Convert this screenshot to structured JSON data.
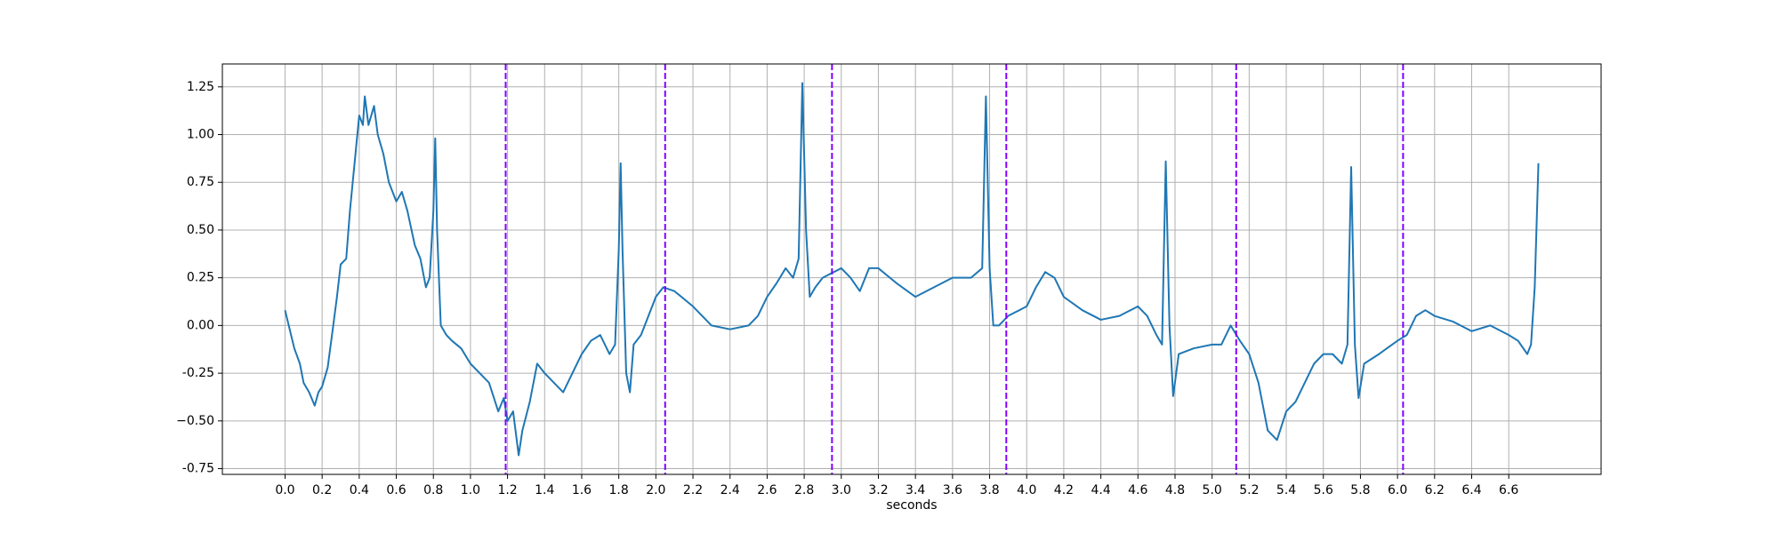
{
  "chart_data": {
    "type": "line",
    "xlabel": "seconds",
    "color": "#1f77b4",
    "grid": true,
    "vline_color": "#8000ff",
    "vlines": [
      1.19,
      2.05,
      2.95,
      3.89,
      5.13,
      6.03
    ],
    "xlim": [
      -0.338,
      7.098
    ],
    "ylim": [
      -0.78,
      1.37
    ],
    "xticks": [
      {
        "value": 0,
        "label": "0.0"
      },
      0.2,
      0.4,
      0.6,
      0.8,
      {
        "value": 1,
        "label": "1.0"
      },
      1.2,
      1.4,
      1.6,
      1.8,
      {
        "value": 2,
        "label": "2.0"
      },
      2.2,
      2.4,
      2.6,
      2.8,
      {
        "value": 3,
        "label": "3.0"
      },
      3.2,
      3.4,
      3.6,
      3.8,
      {
        "value": 4,
        "label": "4.0"
      },
      4.2,
      4.4,
      4.6,
      4.8,
      {
        "value": 5,
        "label": "5.0"
      },
      5.2,
      5.4,
      5.6,
      5.8,
      {
        "value": 6,
        "label": "6.0"
      },
      6.2,
      6.4,
      6.6
    ],
    "yticks": [
      -0.75,
      {
        "value": -0.5,
        "label": "−0.50"
      },
      -0.25,
      {
        "value": 0,
        "label": "0.00"
      },
      0.25,
      {
        "value": 0.5,
        "label": "0.50"
      },
      0.75,
      {
        "value": 1,
        "label": "1.00"
      },
      1.25
    ],
    "x": [
      0.0,
      0.02,
      0.05,
      0.08,
      0.1,
      0.13,
      0.16,
      0.18,
      0.2,
      0.23,
      0.26,
      0.28,
      0.3,
      0.33,
      0.35,
      0.38,
      0.4,
      0.42,
      0.43,
      0.45,
      0.48,
      0.5,
      0.53,
      0.56,
      0.6,
      0.63,
      0.66,
      0.7,
      0.73,
      0.76,
      0.78,
      0.8,
      0.81,
      0.82,
      0.84,
      0.87,
      0.9,
      0.95,
      1.0,
      1.05,
      1.1,
      1.15,
      1.18,
      1.2,
      1.23,
      1.26,
      1.28,
      1.32,
      1.36,
      1.4,
      1.45,
      1.5,
      1.55,
      1.6,
      1.65,
      1.7,
      1.75,
      1.78,
      1.8,
      1.81,
      1.82,
      1.84,
      1.86,
      1.88,
      1.92,
      1.96,
      2.0,
      2.04,
      2.1,
      2.2,
      2.3,
      2.4,
      2.5,
      2.55,
      2.6,
      2.65,
      2.7,
      2.74,
      2.77,
      2.79,
      2.81,
      2.83,
      2.86,
      2.9,
      3.0,
      3.05,
      3.1,
      3.15,
      3.2,
      3.3,
      3.4,
      3.5,
      3.6,
      3.7,
      3.76,
      3.78,
      3.8,
      3.82,
      3.85,
      3.9,
      4.0,
      4.05,
      4.1,
      4.15,
      4.2,
      4.3,
      4.4,
      4.5,
      4.6,
      4.65,
      4.7,
      4.73,
      4.75,
      4.77,
      4.79,
      4.82,
      4.9,
      5.0,
      5.05,
      5.1,
      5.15,
      5.2,
      5.25,
      5.3,
      5.35,
      5.4,
      5.45,
      5.5,
      5.55,
      5.6,
      5.65,
      5.7,
      5.73,
      5.75,
      5.77,
      5.79,
      5.82,
      5.9,
      6.0,
      6.05,
      6.1,
      6.15,
      6.2,
      6.3,
      6.4,
      6.5,
      6.6,
      6.65,
      6.7,
      6.72,
      6.74,
      6.76
    ],
    "values": [
      0.08,
      0.0,
      -0.12,
      -0.2,
      -0.3,
      -0.35,
      -0.42,
      -0.35,
      -0.32,
      -0.22,
      0.0,
      0.15,
      0.32,
      0.35,
      0.6,
      0.9,
      1.1,
      1.05,
      1.2,
      1.05,
      1.15,
      1.0,
      0.9,
      0.75,
      0.65,
      0.7,
      0.6,
      0.42,
      0.35,
      0.2,
      0.25,
      0.6,
      0.98,
      0.5,
      0.0,
      -0.05,
      -0.08,
      -0.12,
      -0.2,
      -0.25,
      -0.3,
      -0.45,
      -0.38,
      -0.5,
      -0.45,
      -0.68,
      -0.55,
      -0.4,
      -0.2,
      -0.25,
      -0.3,
      -0.35,
      -0.25,
      -0.15,
      -0.08,
      -0.05,
      -0.15,
      -0.1,
      0.4,
      0.85,
      0.4,
      -0.25,
      -0.35,
      -0.1,
      -0.05,
      0.05,
      0.15,
      0.2,
      0.18,
      0.1,
      0.0,
      -0.02,
      0.0,
      0.05,
      0.15,
      0.22,
      0.3,
      0.25,
      0.35,
      1.27,
      0.5,
      0.15,
      0.2,
      0.25,
      0.3,
      0.25,
      0.18,
      0.3,
      0.3,
      0.22,
      0.15,
      0.2,
      0.25,
      0.25,
      0.3,
      1.2,
      0.3,
      0.0,
      0.0,
      0.05,
      0.1,
      0.2,
      0.28,
      0.25,
      0.15,
      0.08,
      0.03,
      0.05,
      0.1,
      0.05,
      -0.05,
      -0.1,
      0.86,
      0.0,
      -0.37,
      -0.15,
      -0.12,
      -0.1,
      -0.1,
      0.0,
      -0.08,
      -0.15,
      -0.3,
      -0.55,
      -0.6,
      -0.45,
      -0.4,
      -0.3,
      -0.2,
      -0.15,
      -0.15,
      -0.2,
      -0.1,
      0.83,
      -0.1,
      -0.38,
      -0.2,
      -0.15,
      -0.08,
      -0.05,
      0.05,
      0.08,
      0.05,
      0.02,
      -0.03,
      0.0,
      -0.05,
      -0.08,
      -0.15,
      -0.1,
      0.2,
      0.85
    ]
  }
}
